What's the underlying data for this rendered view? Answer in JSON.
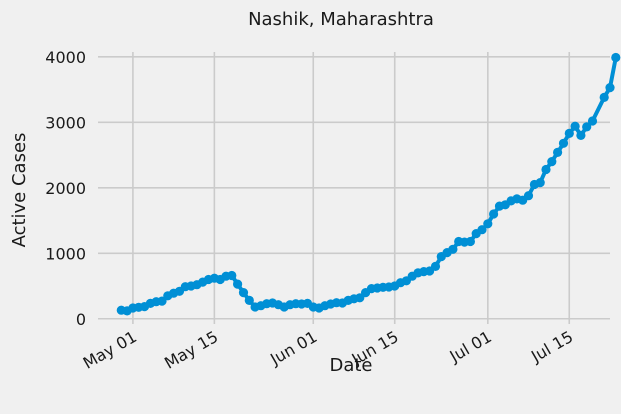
{
  "chart_data": {
    "type": "line",
    "title": "Nashik, Maharashtra",
    "xlabel": "Date",
    "ylabel": "Active Cases",
    "xlim": [
      "2020-04-25",
      "2020-07-22"
    ],
    "ylim": [
      -80,
      4150
    ],
    "x_ticks": [
      {
        "date": "2020-05-01",
        "label": "May 01"
      },
      {
        "date": "2020-05-15",
        "label": "May 15"
      },
      {
        "date": "2020-06-01",
        "label": "Jun 01"
      },
      {
        "date": "2020-06-15",
        "label": "Jun 15"
      },
      {
        "date": "2020-07-01",
        "label": "Jul 01"
      },
      {
        "date": "2020-07-15",
        "label": "Jul 15"
      }
    ],
    "y_ticks": [
      0,
      1000,
      2000,
      3000,
      4000
    ],
    "grid": true,
    "line_color": "#008fd5",
    "series": [
      {
        "name": "",
        "x": [
          "2020-04-29",
          "2020-04-30",
          "2020-05-01",
          "2020-05-02",
          "2020-05-03",
          "2020-05-04",
          "2020-05-05",
          "2020-05-06",
          "2020-05-07",
          "2020-05-08",
          "2020-05-09",
          "2020-05-10",
          "2020-05-11",
          "2020-05-12",
          "2020-05-13",
          "2020-05-14",
          "2020-05-15",
          "2020-05-16",
          "2020-05-17",
          "2020-05-18",
          "2020-05-19",
          "2020-05-20",
          "2020-05-21",
          "2020-05-22",
          "2020-05-23",
          "2020-05-24",
          "2020-05-25",
          "2020-05-26",
          "2020-05-27",
          "2020-05-28",
          "2020-05-29",
          "2020-05-30",
          "2020-05-31",
          "2020-06-01",
          "2020-06-02",
          "2020-06-03",
          "2020-06-04",
          "2020-06-05",
          "2020-06-06",
          "2020-06-07",
          "2020-06-08",
          "2020-06-09",
          "2020-06-10",
          "2020-06-11",
          "2020-06-12",
          "2020-06-13",
          "2020-06-14",
          "2020-06-15",
          "2020-06-16",
          "2020-06-17",
          "2020-06-18",
          "2020-06-19",
          "2020-06-20",
          "2020-06-21",
          "2020-06-22",
          "2020-06-23",
          "2020-06-24",
          "2020-06-25",
          "2020-06-26",
          "2020-06-27",
          "2020-06-28",
          "2020-06-29",
          "2020-06-30",
          "2020-07-01",
          "2020-07-02",
          "2020-07-03",
          "2020-07-04",
          "2020-07-05",
          "2020-07-06",
          "2020-07-07",
          "2020-07-08",
          "2020-07-09",
          "2020-07-10",
          "2020-07-11",
          "2020-07-12",
          "2020-07-13",
          "2020-07-14",
          "2020-07-15",
          "2020-07-16",
          "2020-07-17",
          "2020-07-18",
          "2020-07-19"
        ],
        "values": [
          130,
          120,
          165,
          175,
          185,
          235,
          260,
          270,
          350,
          390,
          420,
          490,
          500,
          520,
          560,
          600,
          620,
          600,
          650,
          660,
          530,
          400,
          280,
          180,
          200,
          230,
          240,
          215,
          180,
          215,
          230,
          225,
          235,
          180,
          165,
          200,
          225,
          245,
          240,
          280,
          305,
          320,
          400,
          460,
          470,
          480,
          485,
          500,
          550,
          580,
          650,
          700,
          720,
          730,
          800,
          950,
          1010,
          1060,
          1180,
          1170,
          1180,
          1300,
          1360,
          1450,
          1600,
          1720,
          1740,
          1800,
          1830,
          1810,
          1880,
          2050,
          2080,
          2280,
          2400,
          2540,
          2680,
          2830,
          2940,
          2800,
          2930,
          3020
        ]
      }
    ],
    "tail": {
      "x": [
        "2020-07-20",
        "2020-07-21",
        "2020-07-22",
        "2020-07-23"
      ],
      "values": [
        3020,
        3380,
        3530,
        3990
      ]
    }
  }
}
